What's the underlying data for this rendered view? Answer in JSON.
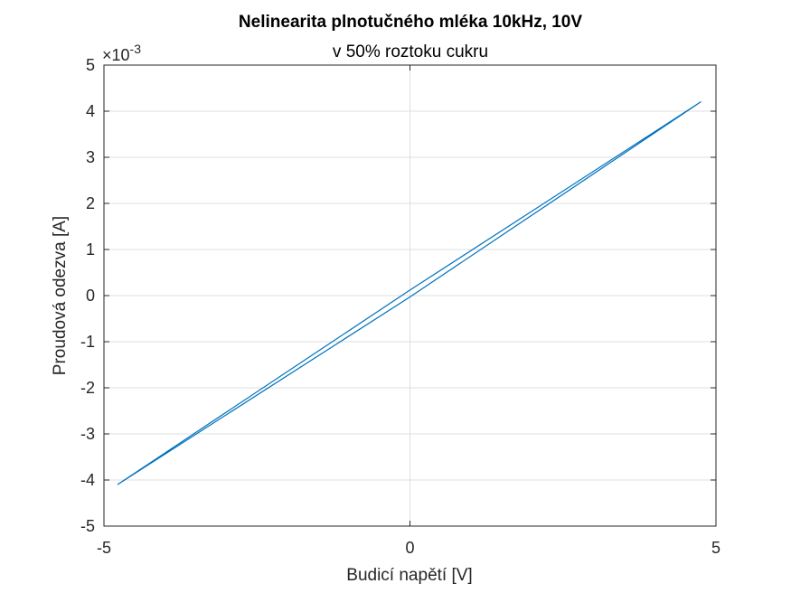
{
  "chart_data": {
    "type": "line",
    "title": "Nelinearita plnotučného mléka 10kHz, 10V",
    "subtitle": "v 50% roztoku cukru",
    "xlabel": "Budicí napětí [V]",
    "ylabel": "Proudová odezva [A]",
    "xlim": [
      -5,
      5
    ],
    "ylim": [
      -0.005,
      0.005
    ],
    "x_ticks": [
      -5,
      0,
      5
    ],
    "x_tick_labels": [
      "-5",
      "0",
      "5"
    ],
    "y_ticks": [
      -0.005,
      -0.004,
      -0.003,
      -0.002,
      -0.001,
      0,
      0.001,
      0.002,
      0.003,
      0.004,
      0.005
    ],
    "y_tick_labels": [
      "-5",
      "-4",
      "-3",
      "-2",
      "-1",
      "0",
      "1",
      "2",
      "3",
      "4",
      "5"
    ],
    "y_exponent": {
      "base": "×10",
      "power": "-3"
    },
    "grid": true,
    "series": [
      {
        "color": "#0072bd",
        "x": [
          -4.78,
          0,
          4.75,
          0,
          -4.78
        ],
        "y": [
          -0.0041,
          0.00012,
          0.0042,
          -3e-05,
          -0.0041
        ]
      }
    ]
  }
}
